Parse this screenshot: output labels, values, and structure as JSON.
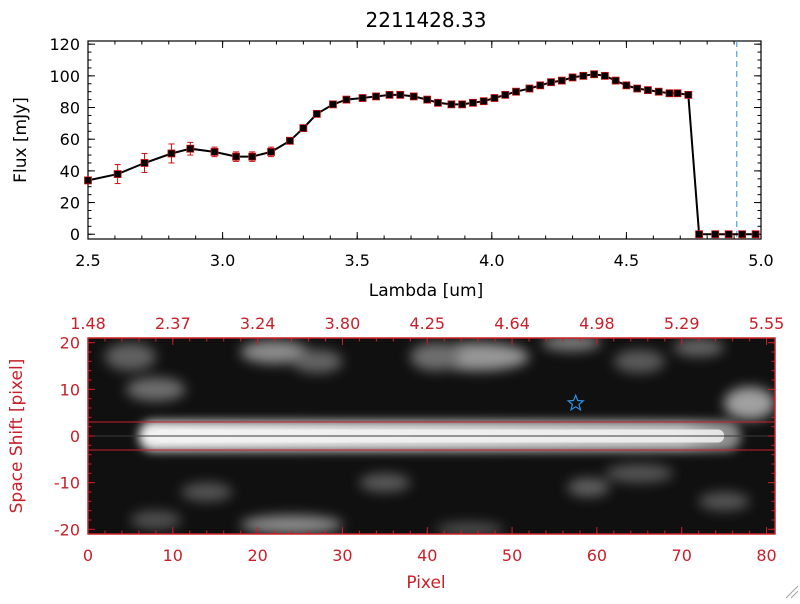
{
  "colors": {
    "axes": "#000000",
    "red": "#c8202a",
    "marker": "#000000",
    "errorbar": "#d01010",
    "cutoff": "#2f8fe0",
    "star": "#2f8fe0"
  },
  "chart_data": [
    {
      "type": "line",
      "title": "2211428.33",
      "xlabel": "Lambda [um]",
      "ylabel": "Flux [mJy]",
      "xlim": [
        2.5,
        5.0
      ],
      "ylim": [
        -3,
        122
      ],
      "xticks": [
        {
          "v": 2.5,
          "label": "2.5"
        },
        {
          "v": 3.0,
          "label": "3.0"
        },
        {
          "v": 3.5,
          "label": "3.5"
        },
        {
          "v": 4.0,
          "label": "4.0"
        },
        {
          "v": 4.5,
          "label": "4.5"
        },
        {
          "v": 5.0,
          "label": "5.0"
        }
      ],
      "yticks": [
        {
          "v": 0,
          "label": "0"
        },
        {
          "v": 20,
          "label": "20"
        },
        {
          "v": 40,
          "label": "40"
        },
        {
          "v": 60,
          "label": "60"
        },
        {
          "v": 80,
          "label": "80"
        },
        {
          "v": 100,
          "label": "100"
        },
        {
          "v": 120,
          "label": "120"
        }
      ],
      "cutoff_x": 4.91,
      "series": [
        {
          "name": "flux",
          "x": [
            2.5,
            2.61,
            2.71,
            2.81,
            2.88,
            2.97,
            3.05,
            3.11,
            3.18,
            3.25,
            3.3,
            3.35,
            3.41,
            3.46,
            3.52,
            3.57,
            3.62,
            3.66,
            3.71,
            3.76,
            3.8,
            3.85,
            3.89,
            3.93,
            3.97,
            4.01,
            4.05,
            4.09,
            4.14,
            4.18,
            4.22,
            4.26,
            4.3,
            4.34,
            4.38,
            4.42,
            4.46,
            4.5,
            4.54,
            4.58,
            4.62,
            4.66,
            4.69,
            4.73,
            4.77,
            4.83,
            4.88,
            4.93,
            4.98
          ],
          "y": [
            34,
            38,
            45,
            51,
            54,
            52,
            49,
            49,
            52,
            59,
            67,
            76,
            82,
            85,
            86,
            87,
            88,
            88,
            87,
            85,
            83,
            82,
            82,
            83,
            84,
            86,
            88,
            90,
            92,
            94,
            96,
            97,
            99,
            100,
            101,
            100,
            97,
            94,
            92,
            91,
            90,
            89,
            89,
            88,
            0,
            0,
            0,
            0,
            0
          ],
          "err": [
            0,
            6,
            6,
            6,
            4,
            3,
            3,
            3,
            3,
            2,
            2,
            2,
            1,
            1,
            1,
            1,
            1,
            1,
            1,
            1,
            1,
            1,
            1,
            1,
            1,
            1,
            1,
            1,
            1,
            1,
            1,
            1,
            1,
            1,
            1,
            1,
            1,
            1,
            1,
            1,
            1,
            1,
            2,
            2,
            1,
            1,
            1,
            1,
            1
          ]
        }
      ]
    },
    {
      "type": "heatmap",
      "xlabel": "Pixel",
      "ylabel": "Space Shift [pixel]",
      "xlim": [
        0,
        81
      ],
      "ylim": [
        -21,
        21
      ],
      "xticks": [
        {
          "v": 0,
          "label": "0"
        },
        {
          "v": 10,
          "label": "10"
        },
        {
          "v": 20,
          "label": "20"
        },
        {
          "v": 30,
          "label": "30"
        },
        {
          "v": 40,
          "label": "40"
        },
        {
          "v": 50,
          "label": "50"
        },
        {
          "v": 60,
          "label": "60"
        },
        {
          "v": 70,
          "label": "70"
        },
        {
          "v": 80,
          "label": "80"
        }
      ],
      "yticks": [
        {
          "v": -20,
          "label": "-20"
        },
        {
          "v": -10,
          "label": "-10"
        },
        {
          "v": 0,
          "label": "0"
        },
        {
          "v": 10,
          "label": "10"
        },
        {
          "v": 20,
          "label": "20"
        }
      ],
      "top_xticks": [
        {
          "v": 0,
          "label": "1.48"
        },
        {
          "v": 10,
          "label": "2.37"
        },
        {
          "v": 20,
          "label": "3.24"
        },
        {
          "v": 30,
          "label": "3.80"
        },
        {
          "v": 40,
          "label": "4.25"
        },
        {
          "v": 50,
          "label": "4.64"
        },
        {
          "v": 60,
          "label": "4.98"
        },
        {
          "v": 70,
          "label": "5.29"
        },
        {
          "v": 80,
          "label": "5.55"
        }
      ],
      "aperture_lines_y": [
        3,
        -3
      ],
      "star": {
        "x": 57.5,
        "y": 7
      },
      "trace": {
        "y_center": 0,
        "x_start": 6,
        "x_end": 77
      },
      "blobs": [
        {
          "x": 5,
          "y": 17,
          "rx": 3,
          "ry": 3,
          "amp": 0.28
        },
        {
          "x": 8,
          "y": 10,
          "rx": 3.5,
          "ry": 2.5,
          "amp": 0.35
        },
        {
          "x": 22,
          "y": 18,
          "rx": 4,
          "ry": 2.5,
          "amp": 0.5
        },
        {
          "x": 27,
          "y": 16,
          "rx": 3,
          "ry": 2.5,
          "amp": 0.3
        },
        {
          "x": 46,
          "y": 17,
          "rx": 6,
          "ry": 3,
          "amp": 0.55
        },
        {
          "x": 41,
          "y": 17,
          "rx": 3,
          "ry": 3,
          "amp": 0.35
        },
        {
          "x": 57,
          "y": 20,
          "rx": 3.5,
          "ry": 1.8,
          "amp": 0.42
        },
        {
          "x": 65,
          "y": 16,
          "rx": 3,
          "ry": 2.5,
          "amp": 0.25
        },
        {
          "x": 72,
          "y": 19,
          "rx": 3,
          "ry": 2,
          "amp": 0.3
        },
        {
          "x": 78,
          "y": 7,
          "rx": 3,
          "ry": 3.5,
          "amp": 0.6
        },
        {
          "x": 14,
          "y": -12,
          "rx": 3,
          "ry": 2,
          "amp": 0.22
        },
        {
          "x": 35,
          "y": -10,
          "rx": 3,
          "ry": 2,
          "amp": 0.25
        },
        {
          "x": 59,
          "y": -11,
          "rx": 2.5,
          "ry": 2,
          "amp": 0.28
        },
        {
          "x": 65,
          "y": -8,
          "rx": 4,
          "ry": 2,
          "amp": 0.22
        },
        {
          "x": 24,
          "y": -19,
          "rx": 6,
          "ry": 2,
          "amp": 0.5
        },
        {
          "x": 8,
          "y": -18,
          "rx": 3,
          "ry": 2,
          "amp": 0.2
        },
        {
          "x": 45,
          "y": -20,
          "rx": 4,
          "ry": 1.5,
          "amp": 0.2
        },
        {
          "x": 75,
          "y": -14,
          "rx": 3,
          "ry": 2,
          "amp": 0.22
        }
      ]
    }
  ]
}
